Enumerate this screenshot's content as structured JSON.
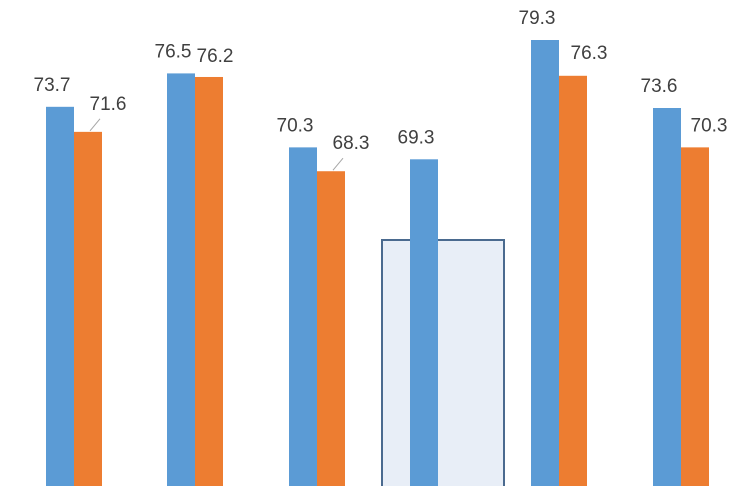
{
  "chart_data": {
    "type": "bar",
    "categories": [
      "",
      "",
      "",
      "",
      "",
      ""
    ],
    "series": [
      {
        "values": [
          73.7,
          76.5,
          70.3,
          69.3,
          79.3,
          73.6
        ],
        "color": "#5b9bd5"
      },
      {
        "values": [
          71.6,
          76.2,
          68.3,
          null,
          76.3,
          70.3
        ],
        "color": "#ed7d31"
      }
    ],
    "labels": {
      "series_0": [
        "73.7",
        "76.5",
        "70.3",
        "69.3",
        "79.3",
        "73.6"
      ],
      "series_1": [
        "71.6",
        "76.2",
        "68.3",
        "",
        "76.3",
        "70.3"
      ]
    },
    "highlight_group_index": 3,
    "highlight_fill": "#e8eef7",
    "highlight_stroke": "#4a6a8f",
    "leader_color": "#a6a6a6",
    "title": "",
    "xlabel": "",
    "ylabel": "",
    "grid": false,
    "legend": "none"
  }
}
